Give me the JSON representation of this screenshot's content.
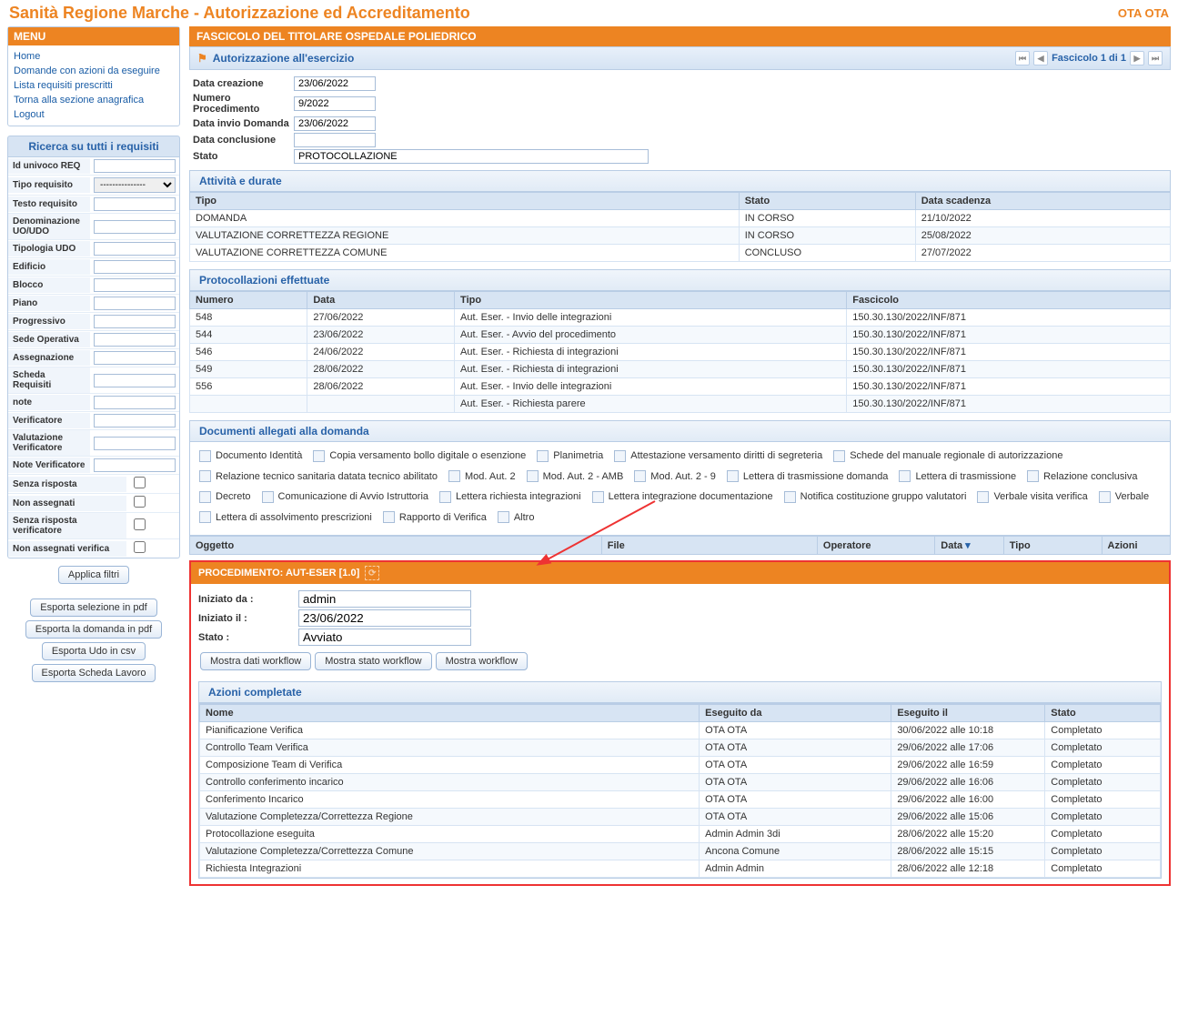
{
  "header": {
    "title": "Sanità Regione Marche - Autorizzazione ed Accreditamento",
    "user": "OTA OTA"
  },
  "menu": {
    "title": "MENU",
    "items": [
      "Home",
      "Domande con azioni da eseguire",
      "Lista requisiti prescritti",
      "Torna alla sezione anagrafica",
      "Logout"
    ]
  },
  "search": {
    "title": "Ricerca su tutti i requisiti",
    "filters": [
      "Id univoco REQ",
      "Tipo requisito",
      "Testo requisito",
      "Denominazione UO/UDO",
      "Tipologia UDO",
      "Edificio",
      "Blocco",
      "Piano",
      "Progressivo",
      "Sede Operativa",
      "Assegnazione",
      "Scheda Requisiti",
      "note",
      "Verificatore",
      "Valutazione Verificatore",
      "Note Verificatore"
    ],
    "select_placeholder": "---------------",
    "cb_filters": [
      "Senza risposta",
      "Non assegnati",
      "Senza risposta verificatore",
      "Non assegnati verifica"
    ],
    "apply": "Applica filtri",
    "exports": [
      "Esporta selezione in pdf",
      "Esporta la domanda in pdf",
      "Esporta Udo in csv",
      "Esporta Scheda Lavoro"
    ]
  },
  "fascicolo": {
    "title": "FASCICOLO DEL TITOLARE OSPEDALE POLIEDRICO",
    "sub": "Autorizzazione all'esercizio",
    "pager": "Fascicolo 1 di 1",
    "fields": {
      "data_creazione": {
        "label": "Data creazione",
        "value": "23/06/2022"
      },
      "num_proc": {
        "label": "Numero Procedimento",
        "value": "9/2022"
      },
      "data_invio": {
        "label": "Data invio Domanda",
        "value": "23/06/2022"
      },
      "data_concl": {
        "label": "Data conclusione",
        "value": ""
      },
      "stato": {
        "label": "Stato",
        "value": "PROTOCOLLAZIONE"
      }
    }
  },
  "attivita": {
    "title": "Attività e durate",
    "cols": [
      "Tipo",
      "Stato",
      "Data scadenza"
    ],
    "rows": [
      [
        "DOMANDA",
        "IN CORSO",
        "21/10/2022"
      ],
      [
        "VALUTAZIONE CORRETTEZZA REGIONE",
        "IN CORSO",
        "25/08/2022"
      ],
      [
        "VALUTAZIONE CORRETTEZZA COMUNE",
        "CONCLUSO",
        "27/07/2022"
      ]
    ]
  },
  "protocollazioni": {
    "title": "Protocollazioni effettuate",
    "cols": [
      "Numero",
      "Data",
      "Tipo",
      "Fascicolo"
    ],
    "rows": [
      [
        "548",
        "27/06/2022",
        "Aut. Eser. - Invio delle integrazioni",
        "150.30.130/2022/INF/871"
      ],
      [
        "544",
        "23/06/2022",
        "Aut. Eser. - Avvio del procedimento",
        "150.30.130/2022/INF/871"
      ],
      [
        "546",
        "24/06/2022",
        "Aut. Eser. - Richiesta di integrazioni",
        "150.30.130/2022/INF/871"
      ],
      [
        "549",
        "28/06/2022",
        "Aut. Eser. - Richiesta di integrazioni",
        "150.30.130/2022/INF/871"
      ],
      [
        "556",
        "28/06/2022",
        "Aut. Eser. - Invio delle integrazioni",
        "150.30.130/2022/INF/871"
      ],
      [
        "",
        "",
        "Aut. Eser. - Richiesta parere",
        "150.30.130/2022/INF/871"
      ]
    ]
  },
  "documenti": {
    "title": "Documenti allegati alla domanda",
    "items": [
      "Documento Identità",
      "Copia versamento bollo digitale o esenzione",
      "Planimetria",
      "Attestazione versamento diritti di segreteria",
      "Schede del manuale regionale di autorizzazione",
      "Relazione tecnico sanitaria datata tecnico abilitato",
      "Mod. Aut. 2",
      "Mod. Aut. 2 - AMB",
      "Mod. Aut. 2 - 9",
      "Lettera di trasmissione domanda",
      "Lettera di trasmissione",
      "Relazione conclusiva",
      "Decreto",
      "Comunicazione di Avvio Istruttoria",
      "Lettera richiesta integrazioni",
      "Lettera integrazione documentazione",
      "Notifica costituzione gruppo valutatori",
      "Verbale visita verifica",
      "Verbale",
      "Lettera di assolvimento prescrizioni",
      "Rapporto di Verifica",
      "Altro"
    ],
    "cols": [
      "Oggetto",
      "File",
      "Operatore",
      "Data",
      "Tipo",
      "Azioni"
    ]
  },
  "procedimento": {
    "title": "PROCEDIMENTO: AUT-ESER [1.0]",
    "fields": {
      "iniziato_da": {
        "label": "Iniziato da :",
        "value": "admin"
      },
      "iniziato_il": {
        "label": "Iniziato il :",
        "value": "23/06/2022"
      },
      "stato": {
        "label": "Stato :",
        "value": "Avviato"
      }
    },
    "buttons": [
      "Mostra dati workflow",
      "Mostra stato workflow",
      "Mostra workflow"
    ],
    "azioni_title": "Azioni completate",
    "cols": [
      "Nome",
      "Eseguito da",
      "Eseguito il",
      "Stato"
    ],
    "rows": [
      [
        "Pianificazione Verifica",
        "OTA OTA",
        "30/06/2022 alle 10:18",
        "Completato"
      ],
      [
        "Controllo Team Verifica",
        "OTA OTA",
        "29/06/2022 alle 17:06",
        "Completato"
      ],
      [
        "Composizione Team di Verifica",
        "OTA OTA",
        "29/06/2022 alle 16:59",
        "Completato"
      ],
      [
        "Controllo conferimento incarico",
        "OTA OTA",
        "29/06/2022 alle 16:06",
        "Completato"
      ],
      [
        "Conferimento Incarico",
        "OTA OTA",
        "29/06/2022 alle 16:00",
        "Completato"
      ],
      [
        "Valutazione Completezza/Correttezza Regione",
        "OTA OTA",
        "29/06/2022 alle 15:06",
        "Completato"
      ],
      [
        "Protocollazione eseguita",
        "Admin Admin 3di",
        "28/06/2022 alle 15:20",
        "Completato"
      ],
      [
        "Valutazione Completezza/Correttezza Comune",
        "Ancona Comune",
        "28/06/2022 alle 15:15",
        "Completato"
      ],
      [
        "Richiesta Integrazioni",
        "Admin Admin",
        "28/06/2022 alle 12:18",
        "Completato"
      ]
    ]
  }
}
